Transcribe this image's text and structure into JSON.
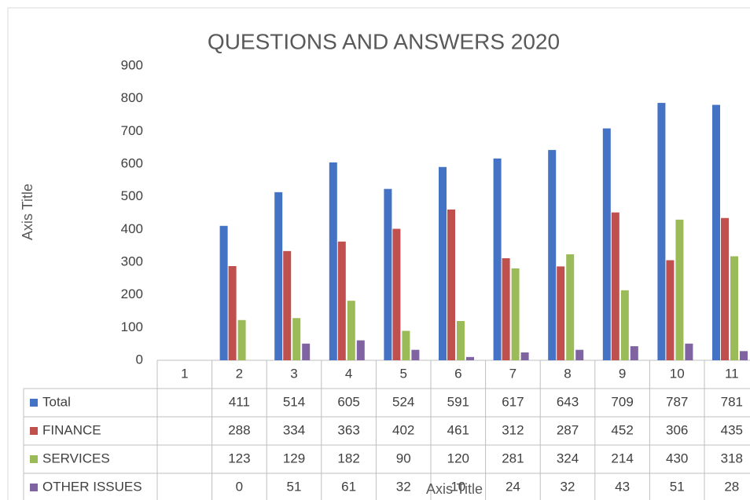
{
  "chart_data": {
    "type": "bar",
    "title": "QUESTIONS AND ANSWERS 2020",
    "x_label": "Axis Title",
    "y_label": "Axis Title",
    "categories": [
      "1",
      "2",
      "3",
      "4",
      "5",
      "6",
      "7",
      "8",
      "9",
      "10",
      "11"
    ],
    "series": [
      {
        "name": "Total",
        "color": "#4472c4",
        "values": [
          null,
          411,
          514,
          605,
          524,
          591,
          617,
          643,
          709,
          787,
          781
        ]
      },
      {
        "name": "FINANCE",
        "color": "#c0504d",
        "values": [
          null,
          288,
          334,
          363,
          402,
          461,
          312,
          287,
          452,
          306,
          435
        ]
      },
      {
        "name": "SERVICES",
        "color": "#9bbb59",
        "values": [
          null,
          123,
          129,
          182,
          90,
          120,
          281,
          324,
          214,
          430,
          318
        ]
      },
      {
        "name": "OTHER ISSUES",
        "color": "#8064a2",
        "values": [
          null,
          0,
          51,
          61,
          32,
          10,
          24,
          32,
          43,
          51,
          28
        ]
      }
    ],
    "ylim": [
      0,
      900
    ],
    "yticks": [
      0,
      100,
      200,
      300,
      400,
      500,
      600,
      700,
      800,
      900
    ],
    "grid": false,
    "data_table": true
  }
}
